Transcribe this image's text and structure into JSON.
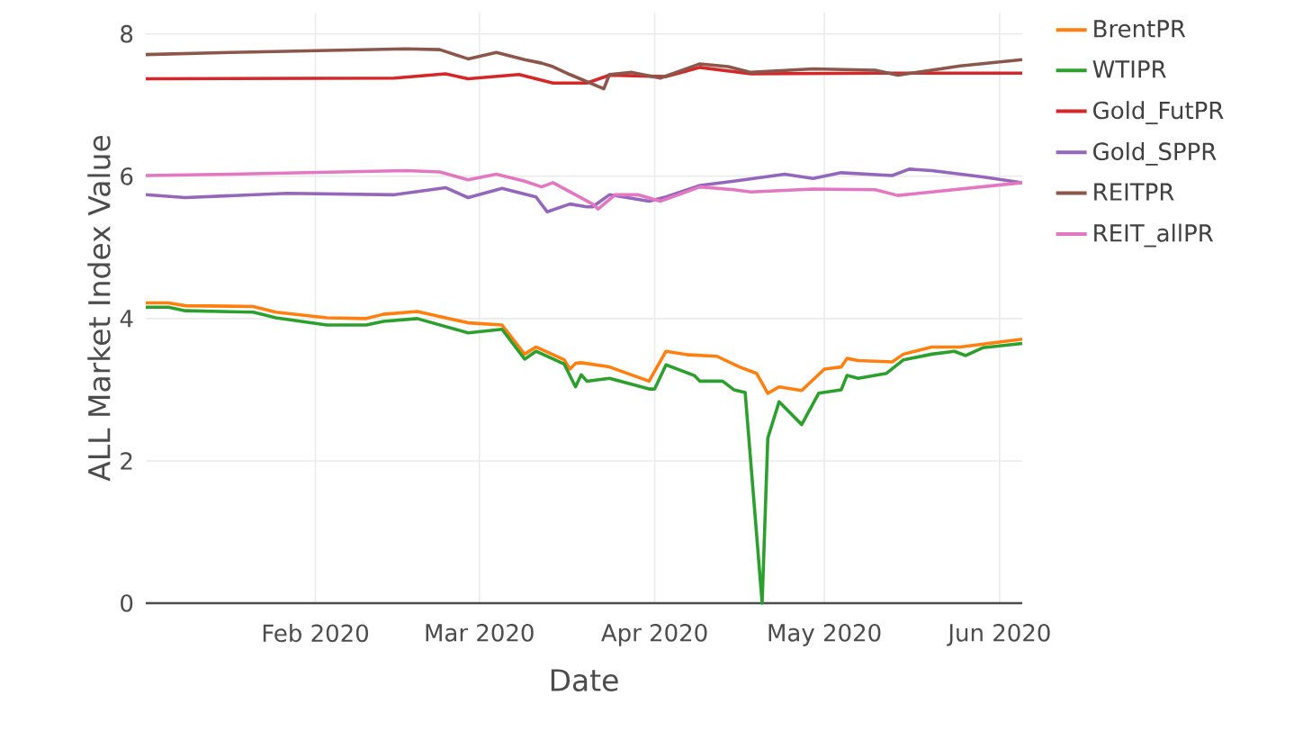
{
  "chart_data": {
    "type": "line",
    "xlabel": "Date",
    "ylabel": "ALL Market Index Value",
    "xlim": [
      "2020-01-02",
      "2020-06-05"
    ],
    "ylim": [
      0,
      8.3
    ],
    "xticks": [
      {
        "value": "2020-02-01",
        "label": "Feb 2020"
      },
      {
        "value": "2020-03-01",
        "label": "Mar 2020"
      },
      {
        "value": "2020-04-01",
        "label": "Apr 2020"
      },
      {
        "value": "2020-05-01",
        "label": "May 2020"
      },
      {
        "value": "2020-06-01",
        "label": "Jun 2020"
      }
    ],
    "yticks": [
      0,
      2,
      4,
      6,
      8
    ],
    "grid": true,
    "legend": "right",
    "marker": "none",
    "series": [
      {
        "name": "BrentPR",
        "color": "#ff7f0e",
        "x": [
          "2020-01-02",
          "2020-01-06",
          "2020-01-09",
          "2020-01-21",
          "2020-01-25",
          "2020-02-03",
          "2020-02-10",
          "2020-02-13",
          "2020-02-19",
          "2020-02-28",
          "2020-03-05",
          "2020-03-09",
          "2020-03-11",
          "2020-03-16",
          "2020-03-17",
          "2020-03-18",
          "2020-03-19",
          "2020-03-24",
          "2020-03-31",
          "2020-04-03",
          "2020-04-07",
          "2020-04-12",
          "2020-04-16",
          "2020-04-19",
          "2020-04-21",
          "2020-04-23",
          "2020-04-27",
          "2020-05-01",
          "2020-05-04",
          "2020-05-05",
          "2020-05-07",
          "2020-05-13",
          "2020-05-15",
          "2020-05-20",
          "2020-05-25",
          "2020-06-05"
        ],
        "values": [
          4.22,
          4.22,
          4.18,
          4.17,
          4.09,
          4.01,
          4.0,
          4.06,
          4.1,
          3.94,
          3.91,
          3.5,
          3.6,
          3.42,
          3.29,
          3.37,
          3.38,
          3.32,
          3.12,
          3.54,
          3.49,
          3.47,
          3.32,
          3.23,
          2.95,
          3.04,
          2.99,
          3.29,
          3.32,
          3.44,
          3.41,
          3.39,
          3.5,
          3.6,
          3.6,
          3.71
        ]
      },
      {
        "name": "WTIPR",
        "color": "#2ca02c",
        "x": [
          "2020-01-02",
          "2020-01-06",
          "2020-01-09",
          "2020-01-21",
          "2020-01-25",
          "2020-02-03",
          "2020-02-10",
          "2020-02-13",
          "2020-02-19",
          "2020-02-28",
          "2020-03-05",
          "2020-03-09",
          "2020-03-11",
          "2020-03-16",
          "2020-03-18",
          "2020-03-19",
          "2020-03-20",
          "2020-03-24",
          "2020-03-31",
          "2020-04-01",
          "2020-04-03",
          "2020-04-06",
          "2020-04-08",
          "2020-04-09",
          "2020-04-13",
          "2020-04-15",
          "2020-04-17",
          "2020-04-20",
          "2020-04-21",
          "2020-04-23",
          "2020-04-27",
          "2020-04-30",
          "2020-05-04",
          "2020-05-05",
          "2020-05-07",
          "2020-05-12",
          "2020-05-15",
          "2020-05-20",
          "2020-05-24",
          "2020-05-26",
          "2020-05-29",
          "2020-06-05"
        ],
        "values": [
          4.16,
          4.16,
          4.11,
          4.09,
          4.01,
          3.91,
          3.91,
          3.96,
          4.0,
          3.8,
          3.85,
          3.43,
          3.54,
          3.36,
          3.04,
          3.21,
          3.12,
          3.16,
          3.01,
          3.01,
          3.35,
          3.26,
          3.2,
          3.12,
          3.12,
          3.0,
          2.96,
          0.0,
          2.32,
          2.83,
          2.51,
          2.95,
          3.0,
          3.2,
          3.16,
          3.23,
          3.42,
          3.5,
          3.54,
          3.48,
          3.59,
          3.65
        ]
      },
      {
        "name": "Gold_FutPR",
        "color": "#d62728",
        "x": [
          "2020-01-02",
          "2020-02-15",
          "2020-02-24",
          "2020-02-28",
          "2020-03-08",
          "2020-03-14",
          "2020-03-20",
          "2020-03-24",
          "2020-04-03",
          "2020-04-09",
          "2020-04-18",
          "2020-05-10",
          "2020-06-05"
        ],
        "values": [
          7.37,
          7.38,
          7.44,
          7.37,
          7.43,
          7.31,
          7.31,
          7.42,
          7.4,
          7.53,
          7.44,
          7.45,
          7.45
        ]
      },
      {
        "name": "Gold_SPPR",
        "color": "#9467bd",
        "x": [
          "2020-01-02",
          "2020-01-09",
          "2020-01-27",
          "2020-02-15",
          "2020-02-24",
          "2020-02-28",
          "2020-03-05",
          "2020-03-11",
          "2020-03-13",
          "2020-03-17",
          "2020-03-20",
          "2020-03-21",
          "2020-03-24",
          "2020-03-31",
          "2020-04-03",
          "2020-04-09",
          "2020-04-15",
          "2020-04-24",
          "2020-04-29",
          "2020-05-04",
          "2020-05-13",
          "2020-05-16",
          "2020-05-20",
          "2020-05-29",
          "2020-06-05"
        ],
        "values": [
          5.74,
          5.7,
          5.76,
          5.74,
          5.84,
          5.7,
          5.83,
          5.71,
          5.5,
          5.61,
          5.57,
          5.57,
          5.74,
          5.65,
          5.71,
          5.87,
          5.93,
          6.03,
          5.97,
          6.05,
          6.01,
          6.1,
          6.08,
          5.99,
          5.91
        ]
      },
      {
        "name": "REITPR",
        "color": "#8c564b",
        "x": [
          "2020-01-02",
          "2020-01-17",
          "2020-02-17",
          "2020-02-23",
          "2020-02-28",
          "2020-03-04",
          "2020-03-09",
          "2020-03-12",
          "2020-03-14",
          "2020-03-17",
          "2020-03-20",
          "2020-03-23",
          "2020-03-24",
          "2020-03-28",
          "2020-04-02",
          "2020-04-09",
          "2020-04-14",
          "2020-04-18",
          "2020-04-29",
          "2020-05-10",
          "2020-05-14",
          "2020-05-25",
          "2020-06-05"
        ],
        "values": [
          7.71,
          7.74,
          7.79,
          7.78,
          7.65,
          7.74,
          7.64,
          7.59,
          7.54,
          7.43,
          7.33,
          7.23,
          7.43,
          7.46,
          7.38,
          7.58,
          7.54,
          7.46,
          7.51,
          7.49,
          7.42,
          7.55,
          7.64
        ]
      },
      {
        "name": "REIT_allPR",
        "color": "#e377c2",
        "x": [
          "2020-01-02",
          "2020-01-17",
          "2020-02-17",
          "2020-02-23",
          "2020-02-28",
          "2020-03-04",
          "2020-03-09",
          "2020-03-12",
          "2020-03-14",
          "2020-03-18",
          "2020-03-21",
          "2020-03-22",
          "2020-03-25",
          "2020-03-29",
          "2020-04-02",
          "2020-04-09",
          "2020-04-15",
          "2020-04-18",
          "2020-04-29",
          "2020-05-10",
          "2020-05-14",
          "2020-06-05"
        ],
        "values": [
          6.01,
          6.03,
          6.08,
          6.06,
          5.95,
          6.03,
          5.93,
          5.85,
          5.91,
          5.74,
          5.61,
          5.54,
          5.74,
          5.74,
          5.65,
          5.85,
          5.81,
          5.78,
          5.82,
          5.81,
          5.73,
          5.91
        ]
      }
    ]
  }
}
